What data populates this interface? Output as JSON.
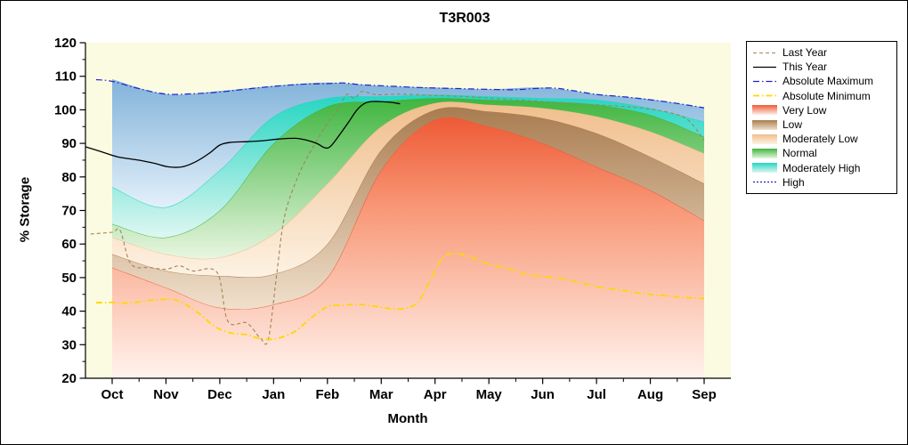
{
  "title": "T3R003",
  "axes": {
    "x_label": "Month",
    "y_label": "% Storage",
    "y_ticks": [
      20,
      30,
      40,
      50,
      60,
      70,
      80,
      90,
      100,
      110,
      120
    ],
    "y_min": 20,
    "y_max": 120
  },
  "colors": {
    "plot_bg": "#fbfbe2",
    "axis": "#000000",
    "last_year": "#a08457",
    "this_year": "#000000",
    "absolute_maximum": "#2121cc",
    "absolute_minimum": "#ffd700"
  },
  "legend": {
    "items": [
      {
        "label": "Last Year",
        "symbol": "line",
        "color": "#a08457",
        "dash": "4 3",
        "width": 1.1
      },
      {
        "label": "This Year",
        "symbol": "line",
        "color": "#000000",
        "dash": "",
        "width": 1.3
      },
      {
        "label": "Absolute Maximum",
        "symbol": "line",
        "color": "#2121cc",
        "dash": "7 3 1.5 3",
        "width": 1.2
      },
      {
        "label": "Absolute Minimum",
        "symbol": "line",
        "color": "#ffd700",
        "dash": "7 3 1.5 3",
        "width": 1.8
      },
      {
        "label": "Very Low",
        "symbol": "box",
        "color_top": "#ee5a36",
        "color_bottom": "#fef0eb"
      },
      {
        "label": "Low",
        "symbol": "box",
        "color_top": "#a97c50",
        "color_bottom": "#f0e0cc"
      },
      {
        "label": "Moderately Low",
        "symbol": "box",
        "color_top": "#f0be8c",
        "color_bottom": "#fdf2e3"
      },
      {
        "label": "Normal",
        "symbol": "box",
        "color_top": "#3fb53f",
        "color_bottom": "#e9f6e1"
      },
      {
        "label": "Moderately High",
        "symbol": "box",
        "color_top": "#25d5c2",
        "color_bottom": "#dff7f2"
      },
      {
        "label": "High",
        "symbol": "line",
        "color": "#2121cc",
        "dash": "2 2",
        "width": 1.2
      }
    ]
  },
  "chart_data": {
    "type": "area",
    "title": "T3R003",
    "xlabel": "Month",
    "ylabel": "% Storage",
    "ylim": [
      20,
      120
    ],
    "grid": false,
    "legend_position": "right",
    "categories": [
      "Oct",
      "Nov",
      "Dec",
      "Jan",
      "Feb",
      "Mar",
      "Apr",
      "May",
      "Jun",
      "Jul",
      "Aug",
      "Sep"
    ],
    "bands": [
      {
        "name": "Very Low",
        "base": 20,
        "top": [
          53,
          47,
          41,
          42,
          50,
          82,
          97,
          95,
          90,
          83,
          76,
          67
        ],
        "color_top": "#ee5a36",
        "color_mid": "#f89877",
        "color_bottom": "#fff3ee"
      },
      {
        "name": "Low",
        "top": [
          57,
          52,
          50.5,
          51,
          60,
          88,
          100,
          99.5,
          97.5,
          93,
          86,
          78
        ],
        "color_top": "#a97c50",
        "color_bottom": "#f0e0cc"
      },
      {
        "name": "Moderately Low",
        "top": [
          62,
          57,
          56,
          63,
          78,
          95,
          102,
          101.5,
          100.5,
          98,
          93.5,
          87
        ],
        "color_top": "#f0be8c",
        "color_bottom": "#fdf2e3"
      },
      {
        "name": "Normal",
        "top": [
          66,
          62,
          70,
          90,
          101,
          102.5,
          103.5,
          103,
          102.5,
          101.5,
          98.5,
          92
        ],
        "color_top": "#3fb53f",
        "color_bottom": "#e9f6e1"
      },
      {
        "name": "Moderately High",
        "top": [
          77,
          71,
          82,
          98,
          103.5,
          104,
          104.5,
          104,
          103.5,
          103,
          100.5,
          96.5
        ],
        "color_top": "#25d5c2",
        "color_bottom": "#dff7f2"
      },
      {
        "name": "High",
        "top": [
          109,
          104.5,
          105.5,
          107,
          108,
          107,
          106.5,
          106,
          106.5,
          104.5,
          103,
          100.5
        ],
        "color_top": "#82b3da",
        "color_bottom": "#e3f0fa"
      }
    ],
    "lines": [
      {
        "name": "Last Year",
        "color": "#a08457",
        "dash": "4 3",
        "width": 1.1,
        "points": [
          [
            -0.4,
            63
          ],
          [
            0,
            63.5
          ],
          [
            0.15,
            64
          ],
          [
            0.35,
            54
          ],
          [
            0.7,
            53
          ],
          [
            1,
            52.5
          ],
          [
            1.25,
            53.5
          ],
          [
            1.5,
            52
          ],
          [
            1.95,
            51.5
          ],
          [
            2.15,
            37
          ],
          [
            2.5,
            36.5
          ],
          [
            2.75,
            32
          ],
          [
            2.9,
            31.5
          ],
          [
            3.05,
            50
          ],
          [
            3.2,
            68
          ],
          [
            3.45,
            80
          ],
          [
            3.7,
            88
          ],
          [
            4,
            96
          ],
          [
            4.2,
            100
          ],
          [
            4.35,
            104.5
          ],
          [
            4.5,
            103.5
          ],
          [
            4.65,
            105.5
          ],
          [
            4.9,
            104.5
          ],
          [
            5.3,
            104.7
          ],
          [
            5.7,
            104.5
          ],
          [
            6,
            104.3
          ],
          [
            6.5,
            104
          ],
          [
            7,
            103.5
          ],
          [
            7.5,
            103
          ],
          [
            8,
            102.5
          ],
          [
            8.5,
            102
          ],
          [
            9,
            101.5
          ],
          [
            9.5,
            101
          ],
          [
            10,
            100.2
          ],
          [
            10.4,
            99
          ],
          [
            10.7,
            97
          ],
          [
            11,
            91
          ]
        ]
      },
      {
        "name": "Absolute Maximum",
        "color": "#2121cc",
        "dash": "7 3 1.5 3",
        "width": 1.2,
        "points": [
          [
            -0.3,
            109
          ],
          [
            0,
            108.5
          ],
          [
            0.5,
            106.3
          ],
          [
            1,
            104.7
          ],
          [
            1.5,
            104.8
          ],
          [
            2,
            105.3
          ],
          [
            2.5,
            106.2
          ],
          [
            3,
            107
          ],
          [
            3.5,
            107.6
          ],
          [
            4,
            107.8
          ],
          [
            4.3,
            108
          ],
          [
            4.6,
            107.5
          ],
          [
            5,
            107.2
          ],
          [
            5.5,
            106.8
          ],
          [
            6,
            106.5
          ],
          [
            6.5,
            106.3
          ],
          [
            7,
            106.1
          ],
          [
            7.5,
            106
          ],
          [
            7.9,
            106.4
          ],
          [
            8.2,
            106.5
          ],
          [
            8.5,
            105.9
          ],
          [
            9,
            104.6
          ],
          [
            9.5,
            103.9
          ],
          [
            10,
            103
          ],
          [
            10.5,
            101.9
          ],
          [
            11,
            100.6
          ]
        ]
      },
      {
        "name": "Absolute Minimum",
        "color": "#ffd700",
        "dash": "7 3 1.5 3",
        "width": 1.8,
        "points": [
          [
            -0.3,
            42.5
          ],
          [
            0,
            42.6
          ],
          [
            0.3,
            42.4
          ],
          [
            0.7,
            43.2
          ],
          [
            1,
            43.5
          ],
          [
            1.25,
            43
          ],
          [
            1.6,
            39.5
          ],
          [
            1.9,
            35.5
          ],
          [
            2.2,
            33.5
          ],
          [
            2.5,
            33
          ],
          [
            2.7,
            32
          ],
          [
            2.9,
            31.6
          ],
          [
            3.1,
            32
          ],
          [
            3.4,
            34
          ],
          [
            3.7,
            38
          ],
          [
            4,
            41.3
          ],
          [
            4.3,
            41.8
          ],
          [
            4.6,
            42
          ],
          [
            5,
            41.2
          ],
          [
            5.25,
            40.6
          ],
          [
            5.5,
            41
          ],
          [
            5.7,
            43
          ],
          [
            5.9,
            49
          ],
          [
            6.1,
            55
          ],
          [
            6.3,
            57.2
          ],
          [
            6.6,
            56.5
          ],
          [
            7,
            54
          ],
          [
            7.4,
            52.5
          ],
          [
            7.7,
            51
          ],
          [
            8,
            50.3
          ],
          [
            8.4,
            49.6
          ],
          [
            8.7,
            48.5
          ],
          [
            9,
            47.3
          ],
          [
            9.4,
            46.4
          ],
          [
            9.7,
            45.6
          ],
          [
            10,
            45
          ],
          [
            10.4,
            44.4
          ],
          [
            10.7,
            44
          ],
          [
            11,
            43.8
          ]
        ]
      },
      {
        "name": "This Year",
        "color": "#000000",
        "dash": "",
        "width": 1.3,
        "points": [
          [
            -0.5,
            89
          ],
          [
            -0.2,
            87.5
          ],
          [
            0.1,
            86
          ],
          [
            0.5,
            85
          ],
          [
            0.8,
            84
          ],
          [
            1.05,
            83
          ],
          [
            1.3,
            83
          ],
          [
            1.55,
            84.5
          ],
          [
            1.8,
            87
          ],
          [
            2,
            89.5
          ],
          [
            2.2,
            90.3
          ],
          [
            2.5,
            90.5
          ],
          [
            2.8,
            90.8
          ],
          [
            3.1,
            91.3
          ],
          [
            3.4,
            91.5
          ],
          [
            3.6,
            91
          ],
          [
            3.8,
            90
          ],
          [
            3.95,
            88.7
          ],
          [
            4.05,
            89
          ],
          [
            4.2,
            92
          ],
          [
            4.4,
            96.5
          ],
          [
            4.55,
            100
          ],
          [
            4.7,
            102
          ],
          [
            4.85,
            102.5
          ],
          [
            5.05,
            102.4
          ],
          [
            5.2,
            102.2
          ],
          [
            5.35,
            101.8
          ]
        ]
      }
    ]
  }
}
